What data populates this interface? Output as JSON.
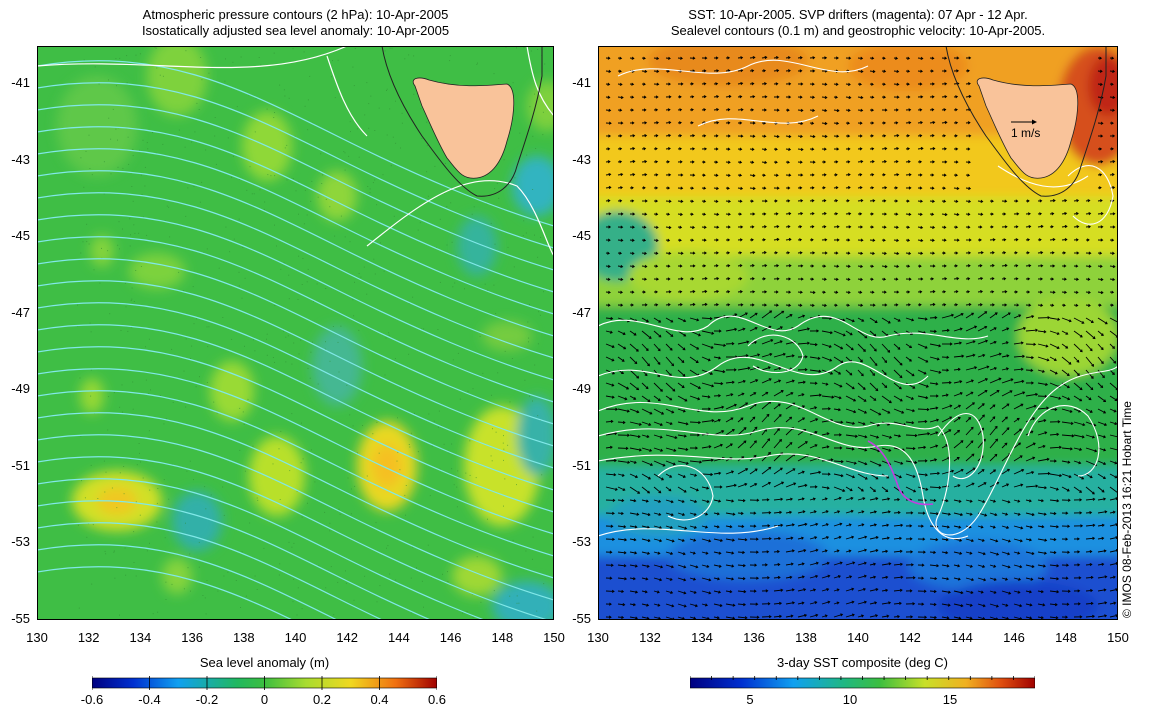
{
  "left_panel": {
    "title_line1": "Atmospheric pressure contours (2 hPa): 10-Apr-2005",
    "title_line2": "Isostatically adjusted sea level anomaly: 10-Apr-2005",
    "colorbar_label": "Sea level anomaly (m)",
    "colorbar_ticks": [
      "-0.6",
      "-0.4",
      "-0.2",
      "0",
      "0.2",
      "0.4",
      "0.6"
    ]
  },
  "right_panel": {
    "title_line1": "SST: 10-Apr-2005. SVP drifters (magenta): 07 Apr - 12 Apr.",
    "title_line2": "Sealevel contours (0.1 m) and geostrophic velocity: 10-Apr-2005.",
    "velocity_scale_label": "1 m/s",
    "colorbar_label": "3-day SST composite (deg C)",
    "colorbar_ticks": [
      "5",
      "10",
      "15"
    ]
  },
  "axes": {
    "lat_ticks": [
      "-41",
      "-43",
      "-45",
      "-47",
      "-49",
      "-51",
      "-53",
      "-55"
    ],
    "lon_ticks": [
      "130",
      "132",
      "134",
      "136",
      "138",
      "140",
      "142",
      "144",
      "146",
      "148",
      "150"
    ]
  },
  "credit": "© IMOS 08-Feb-2013 16:21 Hobart Time",
  "colors": {
    "land": "#f9c39a",
    "contour_white": "#ffffff",
    "contour_cyan": "#80e8e8",
    "drifter_track": "#c040e0"
  }
}
